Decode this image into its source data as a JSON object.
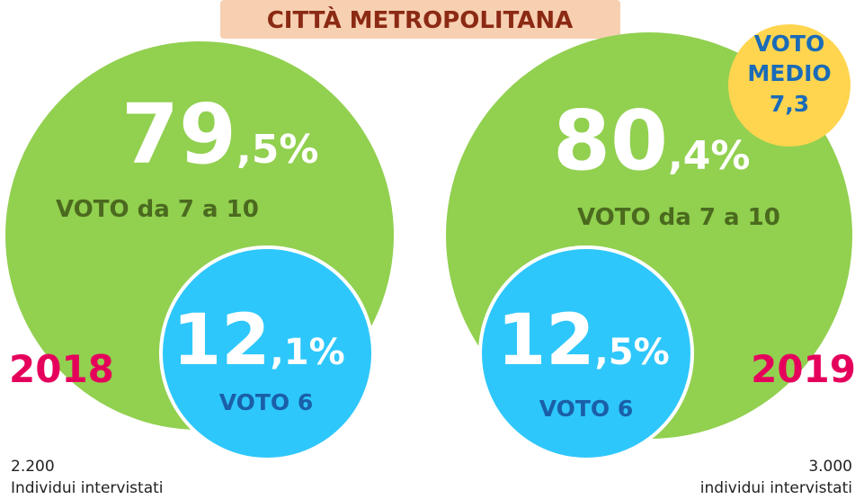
{
  "header": {
    "title": "CITTÀ METROPOLITANA"
  },
  "average": {
    "label1": "VOTO",
    "label2": "MEDIO",
    "value": "7,3"
  },
  "panels": [
    {
      "year": "2018",
      "high": {
        "whole": "79",
        "fraction": ",5%",
        "label": "VOTO da 7 a 10"
      },
      "mid": {
        "whole": "12",
        "fraction": ",1%",
        "label": "VOTO 6"
      },
      "count": "2.200",
      "count_label": "Individui intervistati"
    },
    {
      "year": "2019",
      "high": {
        "whole": "80",
        "fraction": ",4%",
        "label": "VOTO da 7 a 10"
      },
      "mid": {
        "whole": "12",
        "fraction": ",5%",
        "label": "VOTO 6"
      },
      "count": "3.000",
      "count_label": "individui intervistati"
    }
  ]
}
